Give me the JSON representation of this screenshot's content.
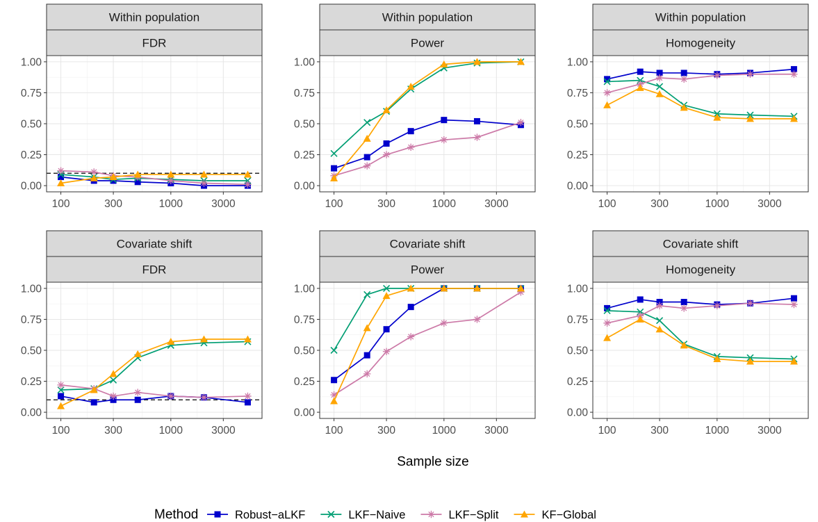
{
  "chart_data": {
    "type": "line",
    "x_scale": "log10",
    "x_ticks": [
      100,
      300,
      1000,
      3000
    ],
    "y_ticks": [
      "0.00",
      "0.25",
      "0.50",
      "0.75",
      "1.00"
    ],
    "xlabel": "Sample size",
    "legend_title": "Method",
    "legend_position": "bottom",
    "x": [
      100,
      200,
      300,
      500,
      1000,
      2000,
      5000
    ],
    "series_meta": [
      {
        "name": "Robust−aLKF",
        "color": "#0000CC",
        "marker": "square"
      },
      {
        "name": "LKF−Naive",
        "color": "#009E73",
        "marker": "cross"
      },
      {
        "name": "LKF−Split",
        "color": "#CC79A7",
        "marker": "asterisk"
      },
      {
        "name": "KF−Global",
        "color": "#FFA500",
        "marker": "triangle"
      }
    ],
    "panels": [
      {
        "strip_top": "Within population",
        "strip_bottom": "FDR",
        "ylim": [
          0,
          1
        ],
        "ref_line": 0.1,
        "series": [
          {
            "name": "Robust−aLKF",
            "values": [
              0.07,
              0.04,
              0.04,
              0.03,
              0.02,
              0.0,
              0.0
            ]
          },
          {
            "name": "LKF−Naive",
            "values": [
              0.09,
              0.07,
              0.05,
              0.06,
              0.05,
              0.04,
              0.04
            ]
          },
          {
            "name": "LKF−Split",
            "values": [
              0.12,
              0.11,
              0.08,
              0.07,
              0.04,
              0.02,
              0.01
            ]
          },
          {
            "name": "KF−Global",
            "values": [
              0.02,
              0.06,
              0.07,
              0.09,
              0.09,
              0.09,
              0.09
            ]
          }
        ]
      },
      {
        "strip_top": "Within population",
        "strip_bottom": "Power",
        "ylim": [
          0,
          1
        ],
        "series": [
          {
            "name": "Robust−aLKF",
            "values": [
              0.14,
              0.23,
              0.34,
              0.44,
              0.53,
              0.52,
              0.49
            ]
          },
          {
            "name": "LKF−Naive",
            "values": [
              0.26,
              0.51,
              0.6,
              0.78,
              0.95,
              0.99,
              1.0
            ]
          },
          {
            "name": "LKF−Split",
            "values": [
              0.08,
              0.16,
              0.25,
              0.31,
              0.37,
              0.39,
              0.51
            ]
          },
          {
            "name": "KF−Global",
            "values": [
              0.06,
              0.38,
              0.61,
              0.8,
              0.98,
              1.0,
              1.0
            ]
          }
        ]
      },
      {
        "strip_top": "Within population",
        "strip_bottom": "Homogeneity",
        "ylim": [
          0,
          1
        ],
        "series": [
          {
            "name": "Robust−aLKF",
            "values": [
              0.86,
              0.92,
              0.91,
              0.91,
              0.9,
              0.91,
              0.94
            ]
          },
          {
            "name": "LKF−Naive",
            "values": [
              0.84,
              0.85,
              0.8,
              0.65,
              0.58,
              0.57,
              0.56
            ]
          },
          {
            "name": "LKF−Split",
            "values": [
              0.75,
              0.82,
              0.87,
              0.86,
              0.89,
              0.9,
              0.9
            ]
          },
          {
            "name": "KF−Global",
            "values": [
              0.65,
              0.79,
              0.74,
              0.63,
              0.55,
              0.54,
              0.54
            ]
          }
        ]
      },
      {
        "strip_top": "Covariate shift",
        "strip_bottom": "FDR",
        "ylim": [
          0,
          1
        ],
        "ref_line": 0.1,
        "series": [
          {
            "name": "Robust−aLKF",
            "values": [
              0.13,
              0.08,
              0.1,
              0.1,
              0.13,
              0.12,
              0.08
            ]
          },
          {
            "name": "LKF−Naive",
            "values": [
              0.18,
              0.19,
              0.26,
              0.44,
              0.54,
              0.56,
              0.57
            ]
          },
          {
            "name": "LKF−Split",
            "values": [
              0.22,
              0.19,
              0.13,
              0.16,
              0.13,
              0.12,
              0.13
            ]
          },
          {
            "name": "KF−Global",
            "values": [
              0.05,
              0.18,
              0.31,
              0.47,
              0.57,
              0.59,
              0.59
            ]
          }
        ]
      },
      {
        "strip_top": "Covariate shift",
        "strip_bottom": "Power",
        "ylim": [
          0,
          1
        ],
        "series": [
          {
            "name": "Robust−aLKF",
            "values": [
              0.26,
              0.46,
              0.67,
              0.85,
              1.0,
              1.0,
              1.0
            ]
          },
          {
            "name": "LKF−Naive",
            "values": [
              0.5,
              0.95,
              1.0,
              1.0,
              1.0,
              1.0,
              1.0
            ]
          },
          {
            "name": "LKF−Split",
            "values": [
              0.14,
              0.31,
              0.49,
              0.61,
              0.72,
              0.75,
              0.97
            ]
          },
          {
            "name": "KF−Global",
            "values": [
              0.09,
              0.68,
              0.94,
              1.0,
              1.0,
              1.0,
              1.0
            ]
          }
        ]
      },
      {
        "strip_top": "Covariate shift",
        "strip_bottom": "Homogeneity",
        "ylim": [
          0,
          1
        ],
        "series": [
          {
            "name": "Robust−aLKF",
            "values": [
              0.84,
              0.91,
              0.89,
              0.89,
              0.87,
              0.88,
              0.92
            ]
          },
          {
            "name": "LKF−Naive",
            "values": [
              0.82,
              0.81,
              0.74,
              0.55,
              0.45,
              0.44,
              0.43
            ]
          },
          {
            "name": "LKF−Split",
            "values": [
              0.72,
              0.78,
              0.86,
              0.84,
              0.86,
              0.88,
              0.87
            ]
          },
          {
            "name": "KF−Global",
            "values": [
              0.6,
              0.75,
              0.67,
              0.54,
              0.43,
              0.41,
              0.41
            ]
          }
        ]
      }
    ]
  }
}
